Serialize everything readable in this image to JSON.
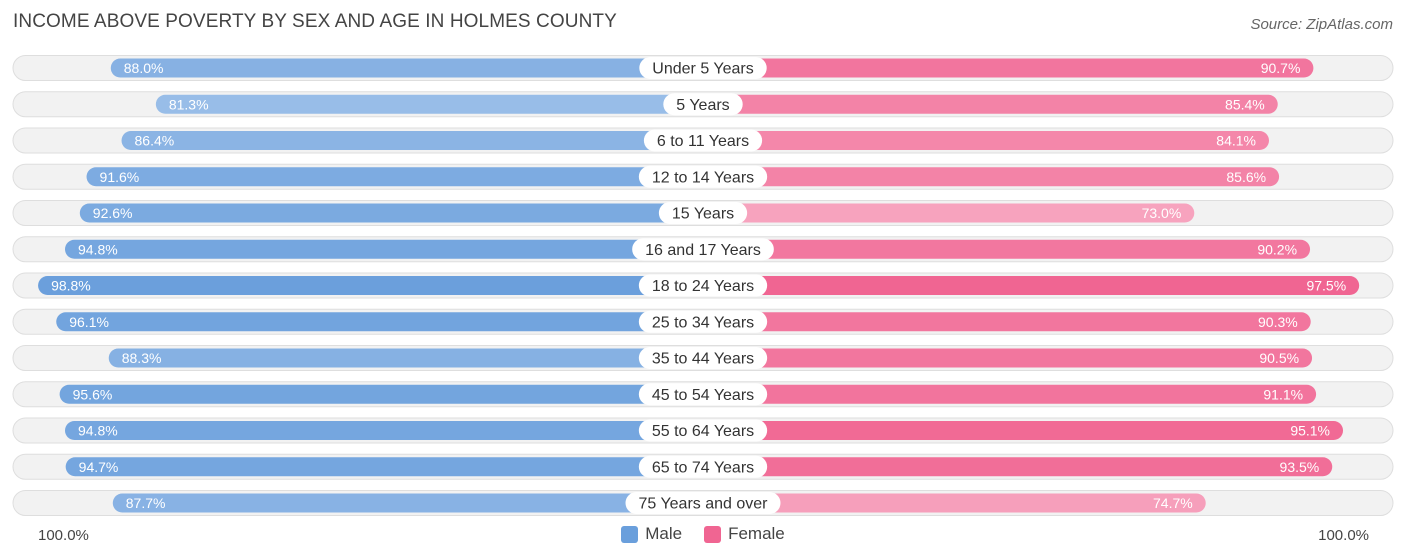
{
  "header": {
    "title": "INCOME ABOVE POVERTY BY SEX AND AGE IN HOLMES COUNTY",
    "source": "Source: ZipAtlas.com"
  },
  "colors": {
    "male_strong": "#6a9fdc",
    "male_light": "#a9c7ec",
    "female_strong": "#f06592",
    "female_light": "#f7a6c0",
    "row_bg": "#f2f2f2",
    "row_border": "#dedede"
  },
  "chart_data": {
    "type": "bar",
    "orientation": "horizontal-diverging",
    "title": "INCOME ABOVE POVERTY BY SEX AND AGE IN HOLMES COUNTY",
    "categories": [
      "Under 5 Years",
      "5 Years",
      "6 to 11 Years",
      "12 to 14 Years",
      "15 Years",
      "16 and 17 Years",
      "18 to 24 Years",
      "25 to 34 Years",
      "35 to 44 Years",
      "45 to 54 Years",
      "55 to 64 Years",
      "65 to 74 Years",
      "75 Years and over"
    ],
    "series": [
      {
        "name": "Male",
        "values": [
          88.0,
          81.3,
          86.4,
          91.6,
          92.6,
          94.8,
          98.8,
          96.1,
          88.3,
          95.6,
          94.8,
          94.7,
          87.7
        ]
      },
      {
        "name": "Female",
        "values": [
          90.7,
          85.4,
          84.1,
          85.6,
          73.0,
          90.2,
          97.5,
          90.3,
          90.5,
          91.1,
          95.1,
          93.5,
          74.7
        ]
      }
    ],
    "value_labels": {
      "Male": [
        "88.0%",
        "81.3%",
        "86.4%",
        "91.6%",
        "92.6%",
        "94.8%",
        "98.8%",
        "96.1%",
        "88.3%",
        "95.6%",
        "94.8%",
        "94.7%",
        "87.7%"
      ],
      "Female": [
        "90.7%",
        "85.4%",
        "84.1%",
        "85.6%",
        "73.0%",
        "90.2%",
        "97.5%",
        "90.3%",
        "90.5%",
        "91.1%",
        "95.1%",
        "93.5%",
        "74.7%"
      ]
    },
    "xlim": [
      0,
      100
    ],
    "axis_min_label": "100.0%",
    "axis_max_label": "100.0%",
    "legend": [
      "Male",
      "Female"
    ],
    "legend_position": "bottom-center"
  }
}
